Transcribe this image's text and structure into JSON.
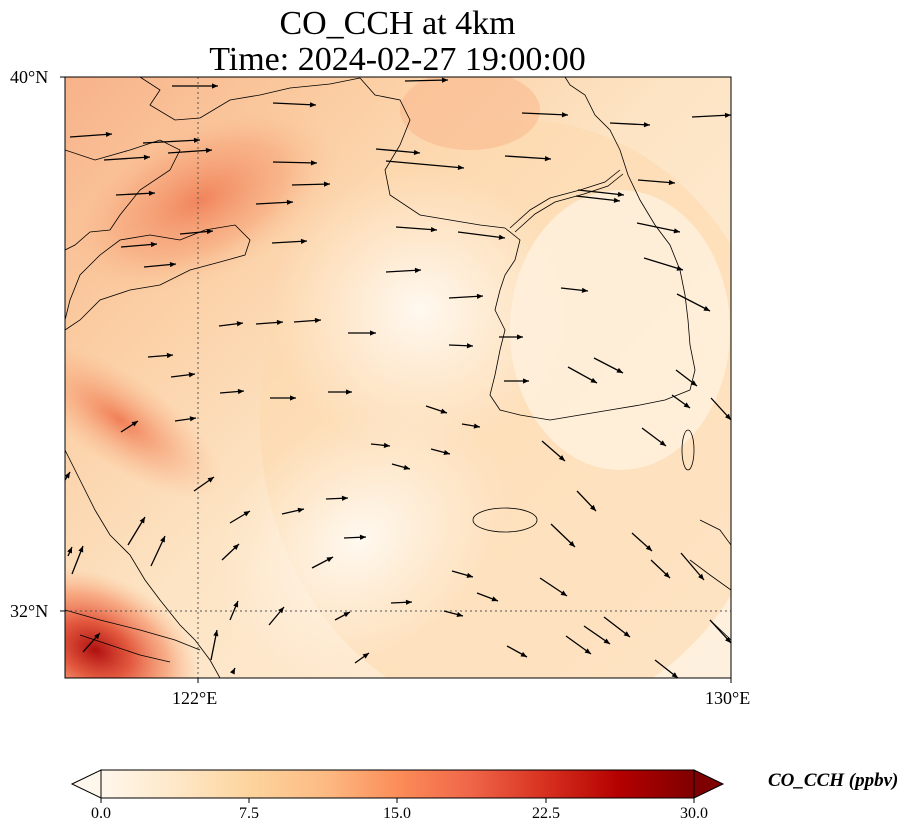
{
  "title": {
    "line1": "CO_CCH at 4km",
    "line2": "Time: 2024-02-27 19:00:00"
  },
  "axes": {
    "lat_labels": [
      "40°N",
      "32°N"
    ],
    "lon_labels": [
      "122°E",
      "130°E"
    ],
    "lat_range": [
      31,
      40
    ],
    "lon_range": [
      120,
      130
    ],
    "gridlines": [
      {
        "lon": 122
      },
      {
        "lat": 32
      }
    ]
  },
  "colorbar": {
    "label": "CO_CCH (ppbv)",
    "ticks": [
      "0.0",
      "7.5",
      "15.0",
      "22.5",
      "30.0"
    ],
    "range": [
      0,
      30
    ],
    "extend": "both",
    "colormap": "OrRd",
    "colors": [
      "#fff7ec",
      "#fee8c8",
      "#fdd49e",
      "#fdbb84",
      "#fc8d59",
      "#ef6548",
      "#d7301f",
      "#b30000",
      "#7f0000"
    ]
  },
  "map_type": "filled field with wind vectors and coastlines",
  "region": "Yellow Sea, Korean Peninsula and eastern China coast"
}
